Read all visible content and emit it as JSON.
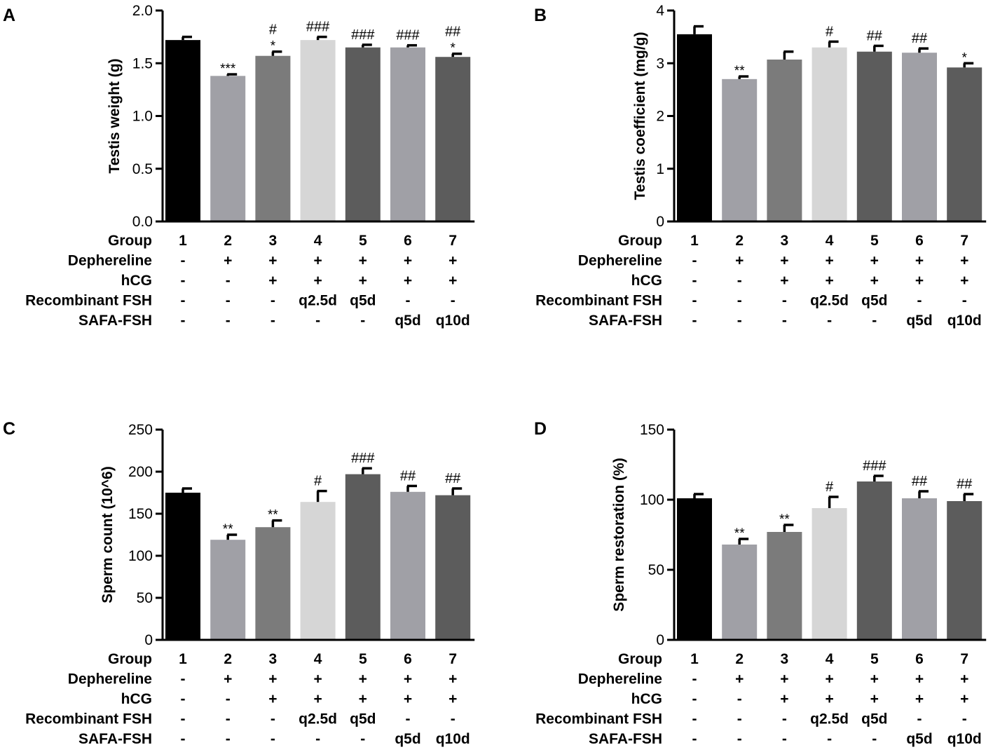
{
  "colors": {
    "axis": "#000000",
    "bar_fills": [
      "#000000",
      "#a0a0a6",
      "#7b7b7b",
      "#d6d6d6",
      "#5c5c5c",
      "#a0a0a6",
      "#5c5c5c"
    ],
    "text": "#000000"
  },
  "chart_data": [
    {
      "panel": "A",
      "type": "bar",
      "ylabel": "Testis weight (g)",
      "ylim": [
        0,
        2.0
      ],
      "yticks": [
        "0.0",
        "0.5",
        "1.0",
        "1.5",
        "2.0"
      ],
      "categories": [
        "1",
        "2",
        "3",
        "4",
        "5",
        "6",
        "7"
      ],
      "values": [
        1.72,
        1.38,
        1.57,
        1.72,
        1.65,
        1.65,
        1.56
      ],
      "errors": [
        0.03,
        0.015,
        0.04,
        0.03,
        0.025,
        0.02,
        0.03
      ],
      "stars": [
        "",
        "***",
        "*",
        "",
        "",
        "",
        "*"
      ],
      "hashes": [
        "",
        "",
        "#",
        "###",
        "###",
        "###",
        "##"
      ]
    },
    {
      "panel": "B",
      "type": "bar",
      "ylabel": "Testis coefficient (mg/g)",
      "ylim": [
        0,
        4
      ],
      "yticks": [
        "0",
        "1",
        "2",
        "3",
        "4"
      ],
      "categories": [
        "1",
        "2",
        "3",
        "4",
        "5",
        "6",
        "7"
      ],
      "values": [
        3.55,
        2.7,
        3.07,
        3.3,
        3.22,
        3.2,
        2.92
      ],
      "errors": [
        0.15,
        0.05,
        0.15,
        0.11,
        0.11,
        0.08,
        0.08
      ],
      "stars": [
        "",
        "**",
        "",
        "",
        "",
        "",
        "*"
      ],
      "hashes": [
        "",
        "",
        "",
        "#",
        "##",
        "##",
        ""
      ]
    },
    {
      "panel": "C",
      "type": "bar",
      "ylabel": "Sperm count (10^6)",
      "ylim": [
        0,
        250
      ],
      "yticks": [
        "0",
        "50",
        "100",
        "150",
        "200",
        "250"
      ],
      "categories": [
        "1",
        "2",
        "3",
        "4",
        "5",
        "6",
        "7"
      ],
      "values": [
        175,
        119,
        134,
        164,
        197,
        176,
        172
      ],
      "errors": [
        5,
        6,
        8,
        13,
        7,
        7,
        8
      ],
      "stars": [
        "",
        "**",
        "**",
        "",
        "",
        "",
        ""
      ],
      "hashes": [
        "",
        "",
        "",
        "#",
        "###",
        "##",
        "##"
      ]
    },
    {
      "panel": "D",
      "type": "bar",
      "ylabel": "Sperm restoration (%)",
      "ylim": [
        0,
        150
      ],
      "yticks": [
        "0",
        "50",
        "100",
        "150"
      ],
      "categories": [
        "1",
        "2",
        "3",
        "4",
        "5",
        "6",
        "7"
      ],
      "values": [
        101,
        68,
        77,
        94,
        113,
        101,
        99
      ],
      "errors": [
        3,
        4,
        5,
        8,
        4,
        5,
        5
      ],
      "stars": [
        "",
        "**",
        "**",
        "",
        "",
        "",
        ""
      ],
      "hashes": [
        "",
        "",
        "",
        "#",
        "###",
        "##",
        "##"
      ]
    }
  ],
  "treatment_table": {
    "row_labels": [
      "Group",
      "Dephereline",
      "hCG",
      "Recombinant FSH",
      "SAFA-FSH"
    ],
    "rows": [
      [
        "1",
        "2",
        "3",
        "4",
        "5",
        "6",
        "7"
      ],
      [
        "-",
        "+",
        "+",
        "+",
        "+",
        "+",
        "+"
      ],
      [
        "-",
        "-",
        "+",
        "+",
        "+",
        "+",
        "+"
      ],
      [
        "-",
        "-",
        "-",
        "q2.5d",
        "q5d",
        "-",
        "-"
      ],
      [
        "-",
        "-",
        "-",
        "-",
        "-",
        "q5d",
        "q10d"
      ]
    ]
  }
}
